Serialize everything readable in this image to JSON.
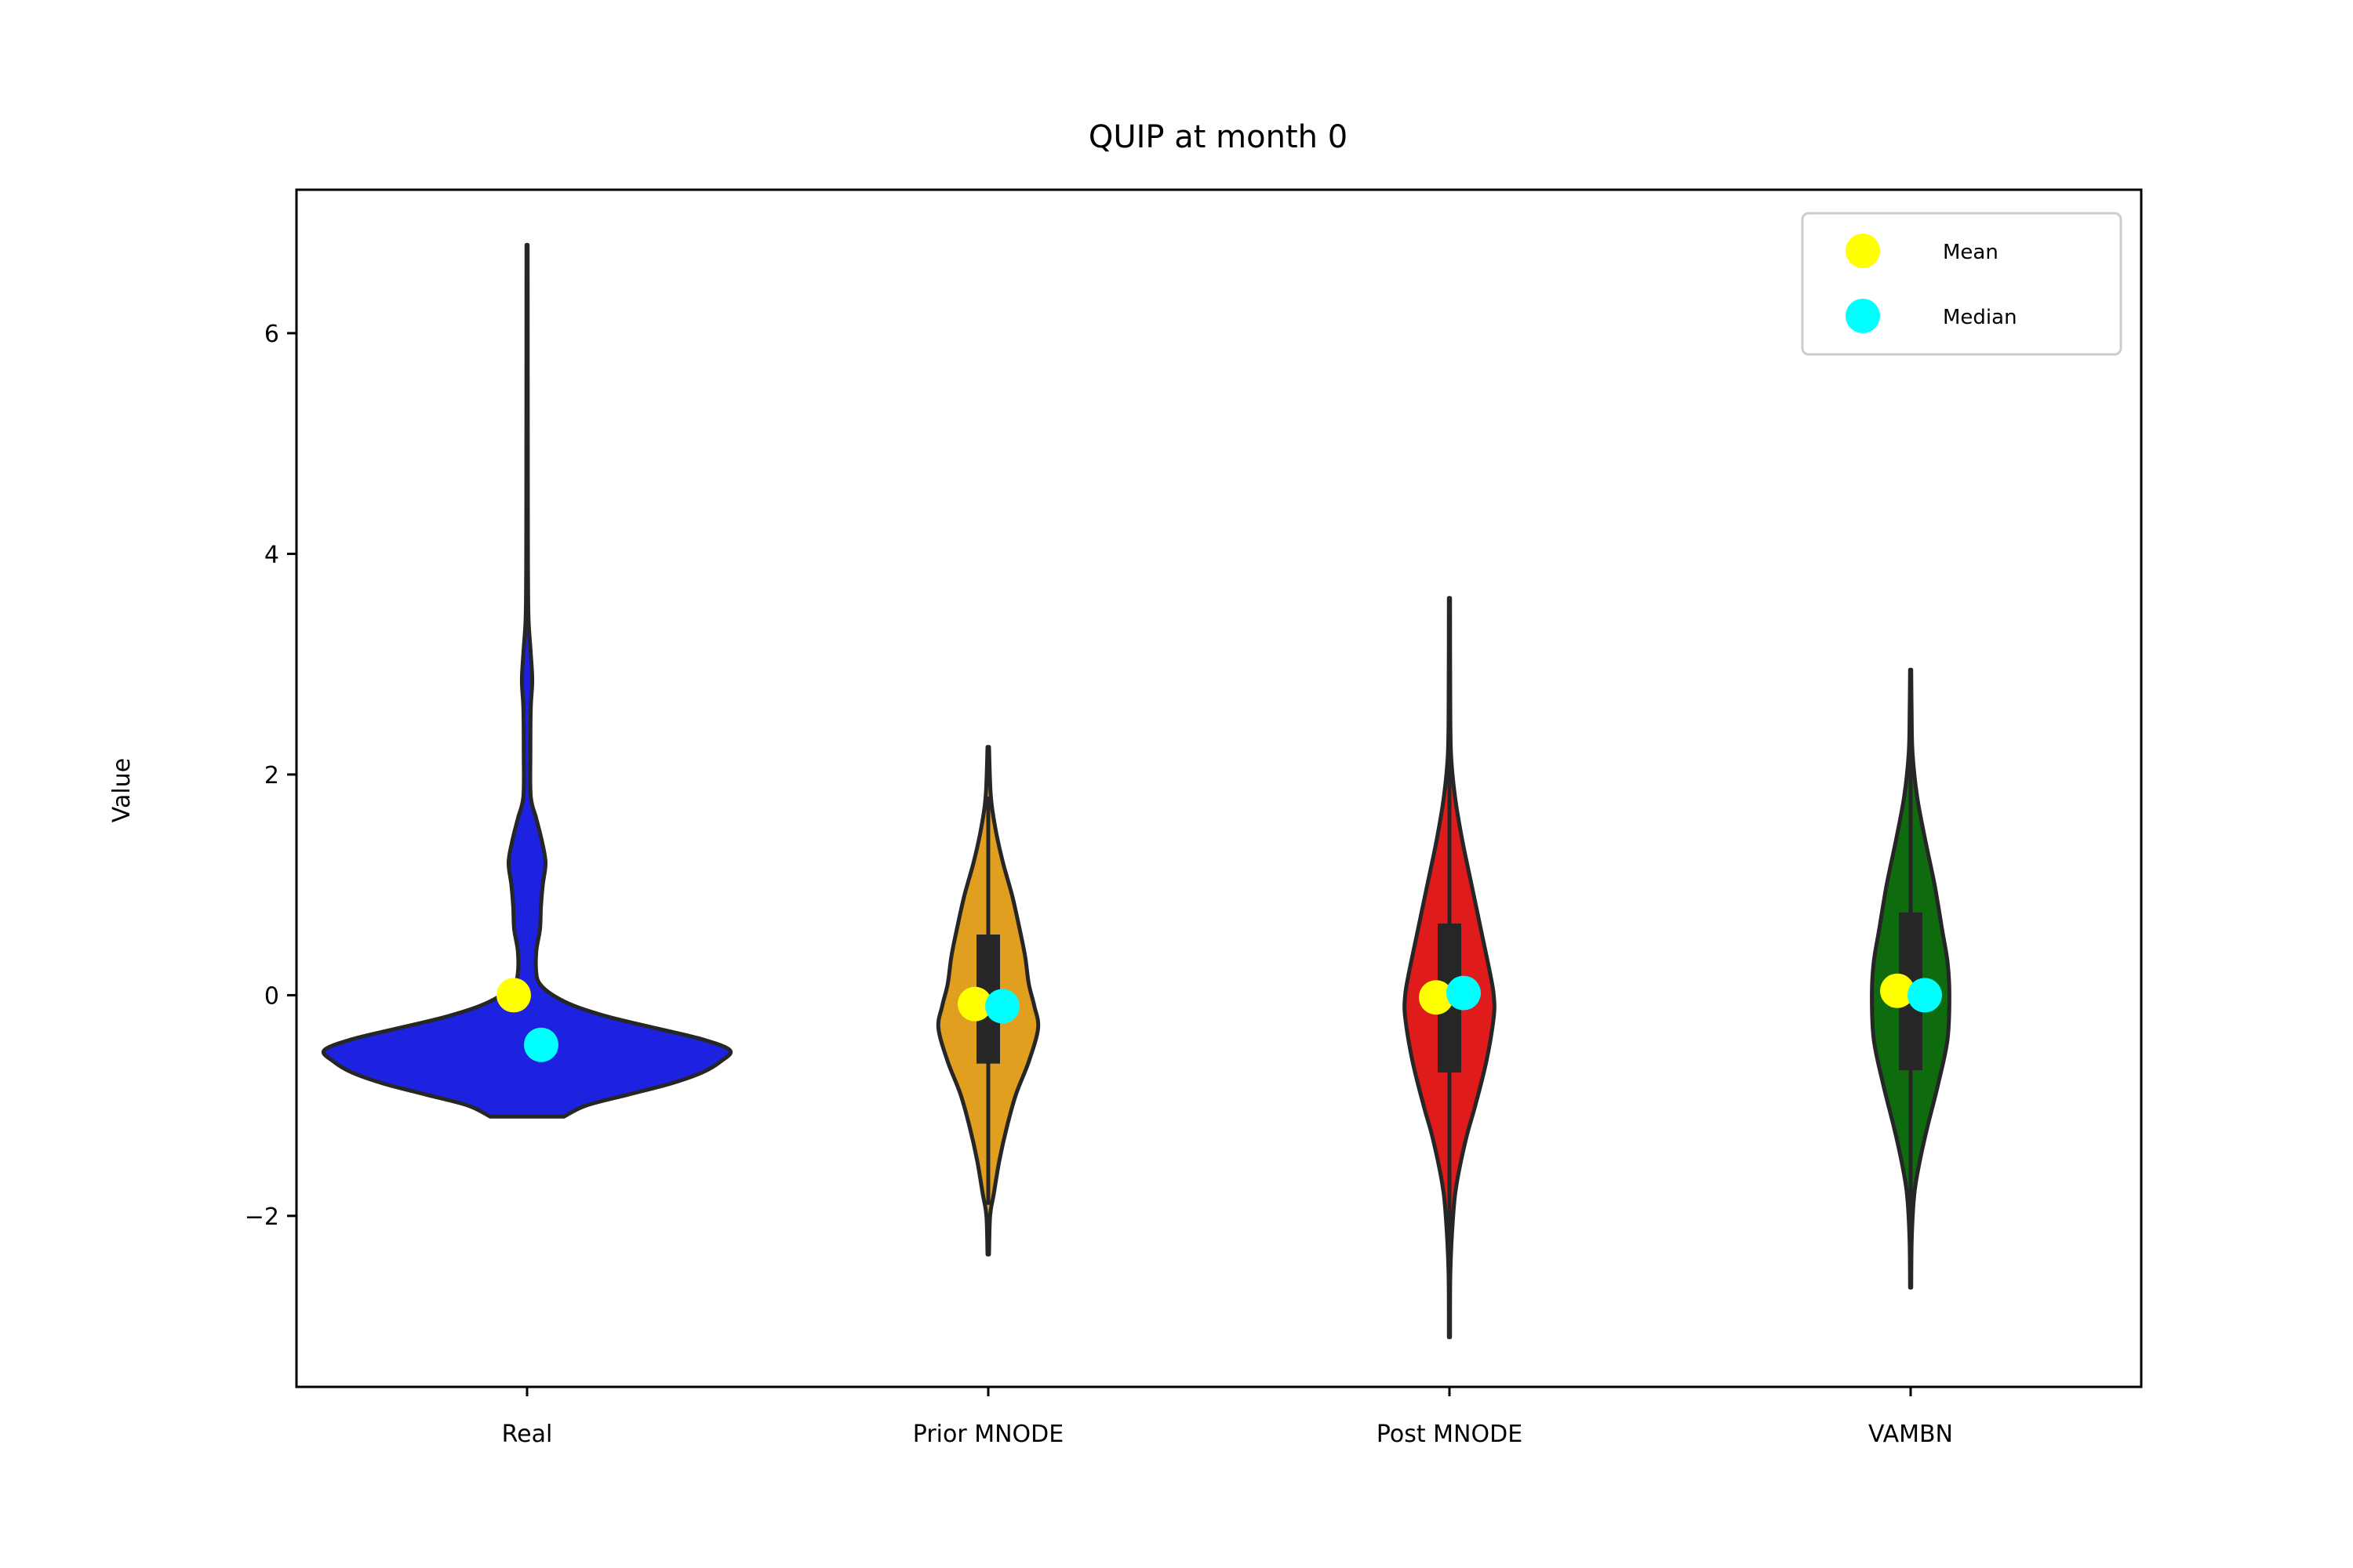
{
  "chart_data": {
    "type": "violin",
    "title": "QUIP at month 0",
    "xlabel": "",
    "ylabel": "Value",
    "ylim": [
      -3.55,
      7.3
    ],
    "yticks": [
      -2,
      0,
      2,
      4,
      6
    ],
    "ytick_labels": [
      "−2",
      "0",
      "2",
      "4",
      "6"
    ],
    "grid": false,
    "legend_position": "top-right",
    "legend": [
      {
        "label": "Mean",
        "color": "#ffff00"
      },
      {
        "label": "Median",
        "color": "#00ffff"
      }
    ],
    "categories": [
      "Real",
      "Prior MNODE",
      "Post MNODE",
      "VAMBN"
    ],
    "series": [
      {
        "color": "#1c22e0",
        "min": -1.1,
        "max": 6.8,
        "mean": 0.0,
        "median": -0.45,
        "q1": null,
        "q3": null,
        "density_profile": [
          [
            -1.1,
            0.2
          ],
          [
            -1.0,
            0.32
          ],
          [
            -0.9,
            0.55
          ],
          [
            -0.8,
            0.78
          ],
          [
            -0.7,
            0.95
          ],
          [
            -0.6,
            1.05
          ],
          [
            -0.5,
            1.1
          ],
          [
            -0.4,
            0.95
          ],
          [
            -0.3,
            0.7
          ],
          [
            -0.2,
            0.45
          ],
          [
            -0.1,
            0.26
          ],
          [
            0.0,
            0.14
          ],
          [
            0.1,
            0.07
          ],
          [
            0.2,
            0.05
          ],
          [
            0.4,
            0.05
          ],
          [
            0.6,
            0.07
          ],
          [
            0.8,
            0.075
          ],
          [
            1.0,
            0.085
          ],
          [
            1.2,
            0.1
          ],
          [
            1.4,
            0.08
          ],
          [
            1.6,
            0.05
          ],
          [
            1.8,
            0.02
          ],
          [
            2.2,
            0.018
          ],
          [
            2.6,
            0.02
          ],
          [
            2.85,
            0.028
          ],
          [
            3.1,
            0.02
          ],
          [
            3.4,
            0.008
          ],
          [
            3.8,
            0.005
          ],
          [
            4.5,
            0.004
          ],
          [
            6.8,
            0.003
          ]
        ]
      },
      {
        "color": "#e09f1f",
        "min": -2.35,
        "max": 2.25,
        "mean": -0.08,
        "median": -0.1,
        "q1": -0.62,
        "q3": 0.55,
        "density_profile": [
          [
            -2.35,
            0.004
          ],
          [
            -2.0,
            0.01
          ],
          [
            -1.8,
            0.03
          ],
          [
            -1.5,
            0.06
          ],
          [
            -1.2,
            0.1
          ],
          [
            -0.9,
            0.15
          ],
          [
            -0.6,
            0.22
          ],
          [
            -0.3,
            0.27
          ],
          [
            -0.1,
            0.25
          ],
          [
            0.1,
            0.22
          ],
          [
            0.35,
            0.2
          ],
          [
            0.6,
            0.17
          ],
          [
            0.9,
            0.13
          ],
          [
            1.2,
            0.08
          ],
          [
            1.5,
            0.04
          ],
          [
            1.8,
            0.014
          ],
          [
            2.25,
            0.004
          ]
        ]
      },
      {
        "color": "#e01b1b",
        "min": -3.1,
        "max": 3.6,
        "mean": -0.02,
        "median": 0.02,
        "q1": -0.7,
        "q3": 0.65,
        "density_profile": [
          [
            -3.1,
            0.003
          ],
          [
            -2.5,
            0.005
          ],
          [
            -2.0,
            0.02
          ],
          [
            -1.7,
            0.04
          ],
          [
            -1.3,
            0.09
          ],
          [
            -1.0,
            0.14
          ],
          [
            -0.6,
            0.2
          ],
          [
            -0.2,
            0.24
          ],
          [
            0.0,
            0.24
          ],
          [
            0.2,
            0.22
          ],
          [
            0.6,
            0.17
          ],
          [
            1.0,
            0.12
          ],
          [
            1.4,
            0.07
          ],
          [
            1.8,
            0.03
          ],
          [
            2.2,
            0.008
          ],
          [
            2.8,
            0.004
          ],
          [
            3.6,
            0.003
          ]
        ]
      },
      {
        "color": "#0e6b0e",
        "min": -2.65,
        "max": 2.95,
        "mean": 0.04,
        "median": 0.0,
        "q1": -0.68,
        "q3": 0.75,
        "density_profile": [
          [
            -2.65,
            0.003
          ],
          [
            -2.2,
            0.006
          ],
          [
            -1.8,
            0.02
          ],
          [
            -1.5,
            0.05
          ],
          [
            -1.2,
            0.09
          ],
          [
            -0.8,
            0.15
          ],
          [
            -0.4,
            0.2
          ],
          [
            0.0,
            0.21
          ],
          [
            0.3,
            0.2
          ],
          [
            0.6,
            0.17
          ],
          [
            1.0,
            0.13
          ],
          [
            1.4,
            0.08
          ],
          [
            1.8,
            0.035
          ],
          [
            2.2,
            0.01
          ],
          [
            2.6,
            0.005
          ],
          [
            2.95,
            0.003
          ]
        ]
      }
    ]
  }
}
